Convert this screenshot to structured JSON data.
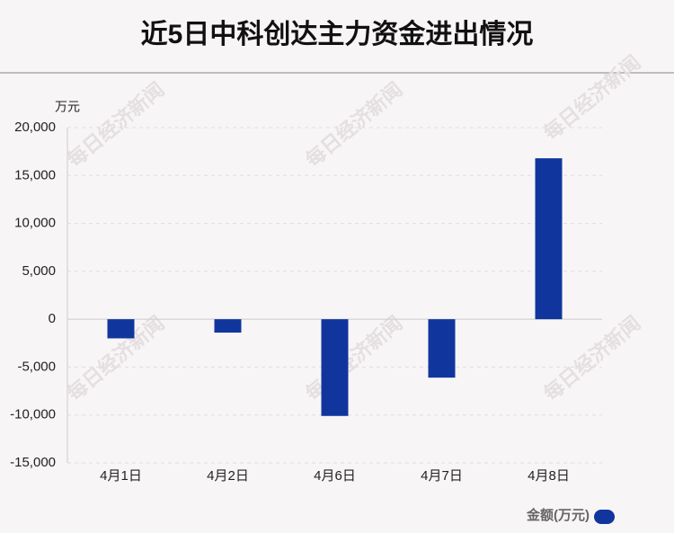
{
  "chart_data": {
    "type": "bar",
    "title": "近5日中科创达主力资金进出情况",
    "y_axis_label": "万元",
    "categories": [
      "4月1日",
      "4月2日",
      "4月6日",
      "4月7日",
      "4月8日"
    ],
    "series": [
      {
        "name": "金额(万元)",
        "color": "#10369e",
        "values": [
          -2000,
          -1400,
          -10100,
          -6100,
          16800
        ]
      }
    ],
    "ylim": [
      -15000,
      20000
    ],
    "yticks": [
      {
        "value": -15000,
        "label": "-15,000"
      },
      {
        "value": -10000,
        "label": "-10,000"
      },
      {
        "value": -5000,
        "label": "-5,000"
      },
      0,
      {
        "value": 5000,
        "label": "5,000"
      },
      {
        "value": 10000,
        "label": "10,000"
      },
      {
        "value": 15000,
        "label": "15,000"
      },
      {
        "value": 20000,
        "label": "20,000"
      }
    ],
    "grid": true,
    "legend": "bottom-right",
    "watermark": "每日经济新闻"
  }
}
